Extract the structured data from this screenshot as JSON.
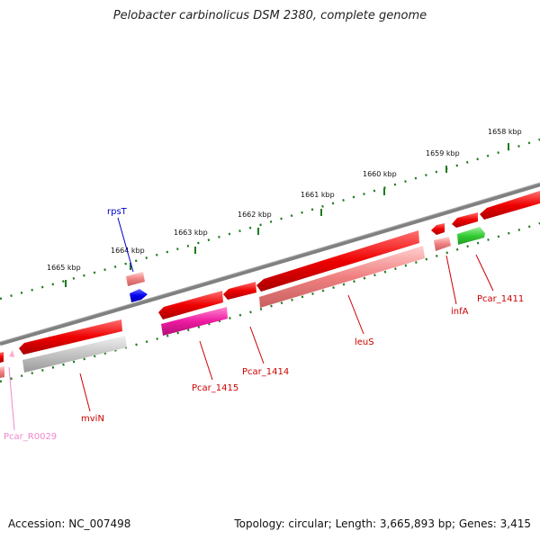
{
  "title": "Pelobacter carbinolicus DSM 2380, complete genome",
  "footer": {
    "accession": "Accession: NC_007498",
    "topology": "Topology: circular; Length: 3,665,893 bp; Genes: 3,415"
  },
  "scale_labels": [
    "1665 kbp",
    "1664 kbp",
    "1663 kbp",
    "1662 kbp",
    "1661 kbp",
    "1660 kbp",
    "1659 kbp",
    "1658 kbp"
  ],
  "genes": [
    {
      "name": "rpsT",
      "color": "#0000cc"
    },
    {
      "name": "Pcar_R0029",
      "color": "#ee88cc"
    },
    {
      "name": "mviN",
      "color": "#cc0000"
    },
    {
      "name": "Pcar_1415",
      "color": "#cc0000"
    },
    {
      "name": "Pcar_1414",
      "color": "#cc0000"
    },
    {
      "name": "leuS",
      "color": "#cc0000"
    },
    {
      "name": "infA",
      "color": "#cc0000"
    },
    {
      "name": "Pcar_1411",
      "color": "#cc0000"
    }
  ],
  "colors": {
    "backbone": "#808080",
    "ticks": "#1e7a1e",
    "cds_red": "#ee0000",
    "gene_pink": "#f08080",
    "magenta": "#ee1aa0",
    "gray": "#bbbbbb",
    "blue": "#0000ee",
    "green": "#33cc33",
    "rrna_pink": "#ffaacc"
  }
}
